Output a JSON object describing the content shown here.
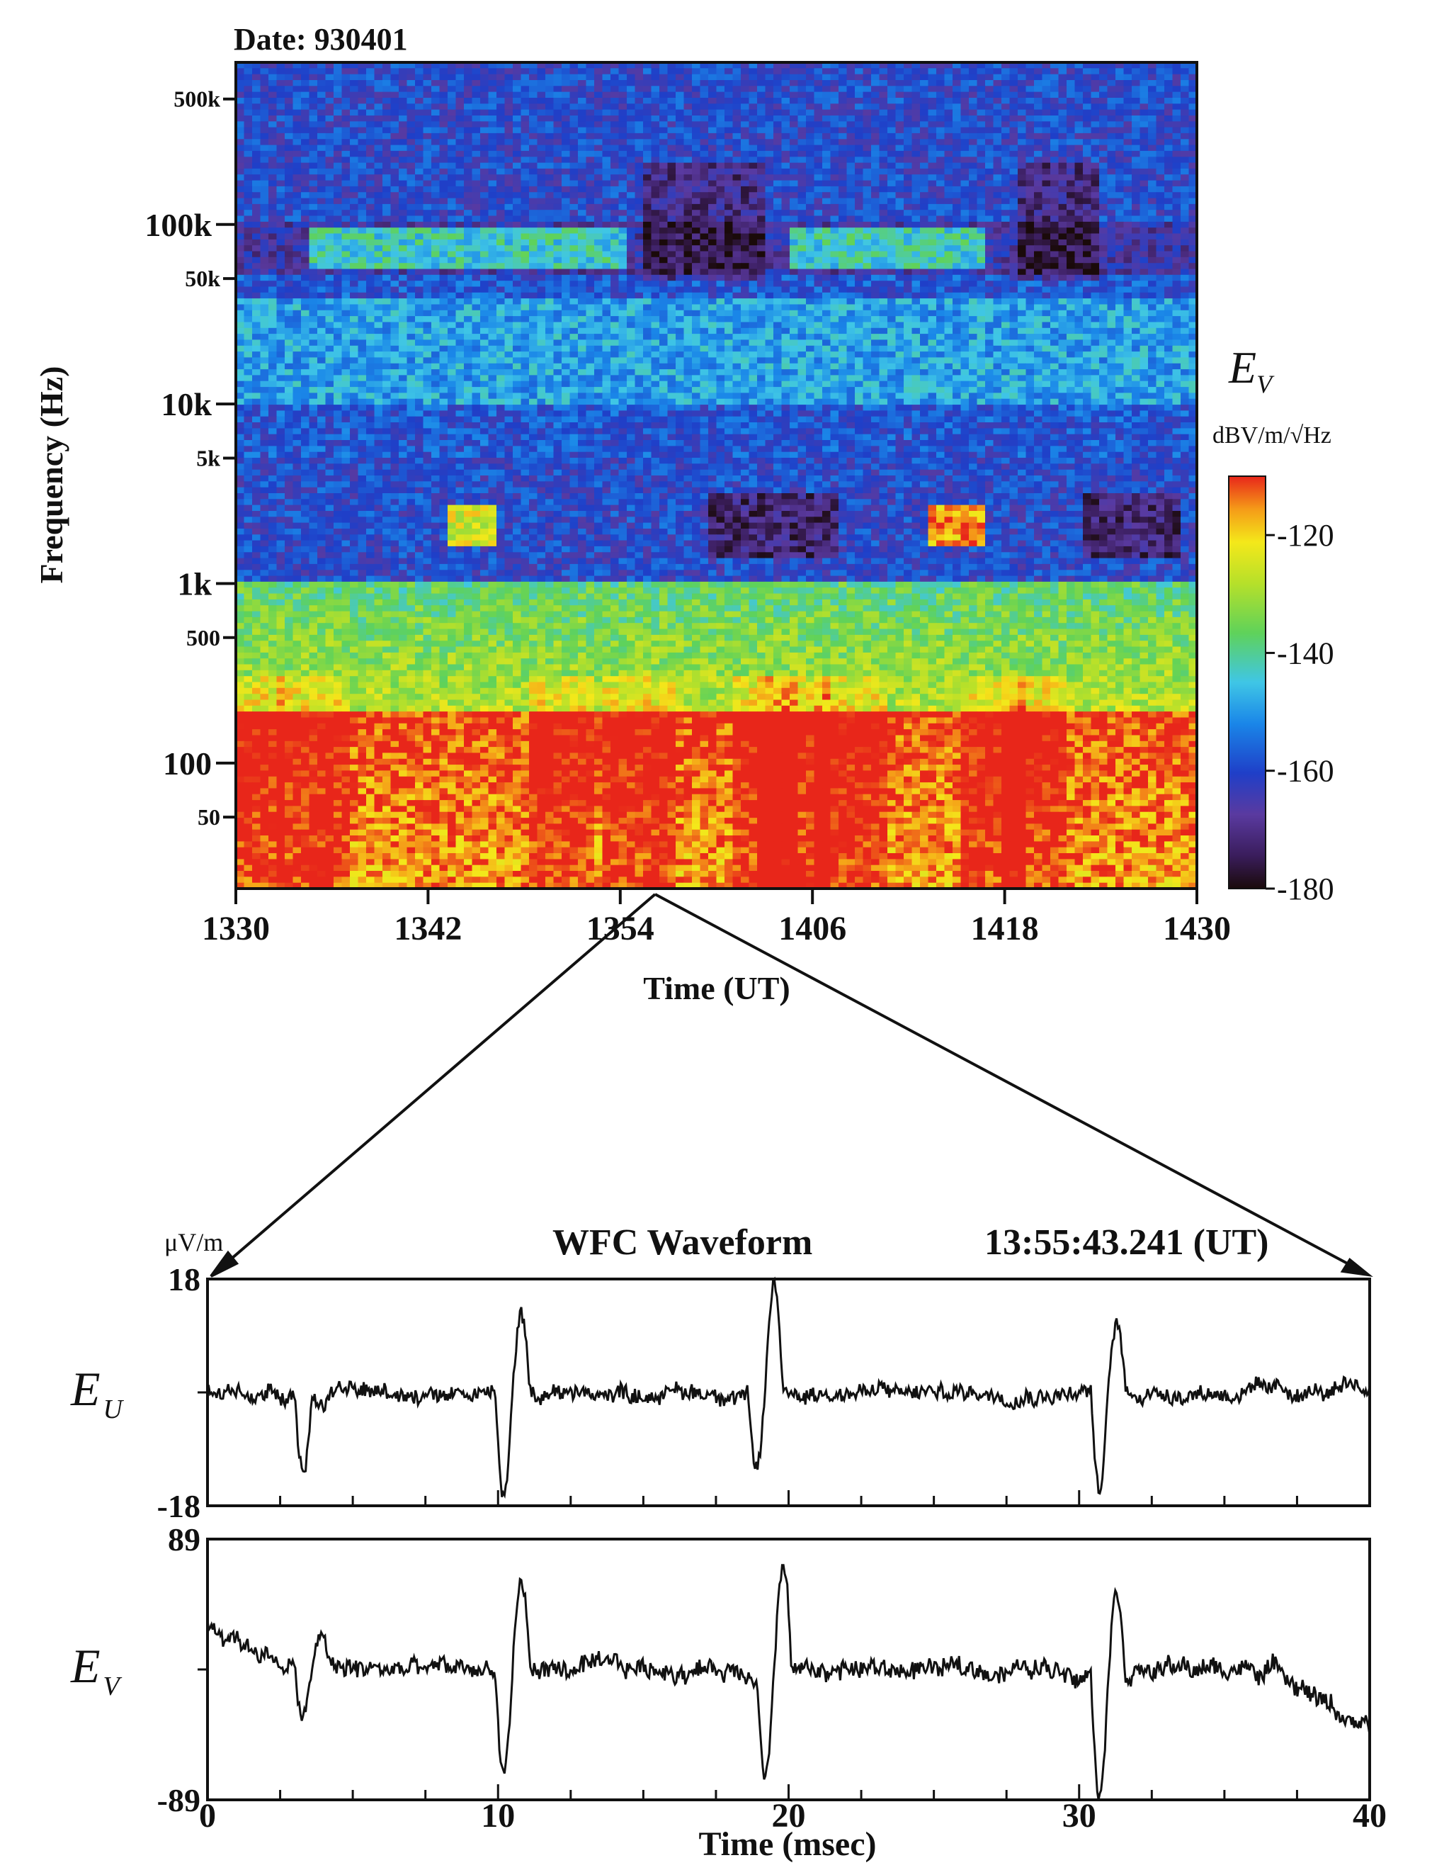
{
  "spectrogram": {
    "date_label": "Date: 930401",
    "ylabel": "Frequency (Hz)",
    "xlabel": "Time (UT)",
    "y_ticks": [
      {
        "label": "500k",
        "value": 500000,
        "major": false
      },
      {
        "label": "100k",
        "value": 100000,
        "major": true
      },
      {
        "label": "50k",
        "value": 50000,
        "major": false
      },
      {
        "label": "10k",
        "value": 10000,
        "major": true
      },
      {
        "label": "5k",
        "value": 5000,
        "major": false
      },
      {
        "label": "1k",
        "value": 1000,
        "major": true
      },
      {
        "label": "500",
        "value": 500,
        "major": false
      },
      {
        "label": "100",
        "value": 100,
        "major": true
      },
      {
        "label": "50",
        "value": 50,
        "major": false
      }
    ],
    "x_ticks": [
      "1330",
      "1342",
      "1354",
      "1406",
      "1418",
      "1430"
    ],
    "colorbar": {
      "title_main": "E",
      "title_sub": "V",
      "unit": "dBV/m/√Hz",
      "ticks": [
        "-120",
        "-140",
        "-160",
        "-180"
      ],
      "range": [
        -180,
        -110
      ]
    }
  },
  "zoom": {
    "source_time": "1355"
  },
  "waveform": {
    "title": "WFC Waveform",
    "timestamp": "13:55:43.241 (UT)",
    "unit": "μV/m",
    "xlabel": "Time (msec)",
    "x_ticks": [
      "0",
      "10",
      "20",
      "30",
      "40"
    ]
  },
  "chart_data": [
    {
      "type": "heatmap",
      "title": "Date: 930401",
      "xlabel": "Time (UT)",
      "ylabel": "Frequency (Hz)",
      "x_range": [
        "1330",
        "1430"
      ],
      "y_range": [
        20,
        800000
      ],
      "y_scale": "log",
      "color_range": [
        -180,
        -110
      ],
      "color_unit": "dBV/m/√Hz",
      "features": [
        {
          "band": "20-200 Hz",
          "level_db": -115
        },
        {
          "band": "200-1k Hz",
          "level_db": -135
        },
        {
          "band": "1k-5k Hz",
          "level_db": -158
        },
        {
          "band": "10k-40k Hz",
          "level_db": -148
        },
        {
          "band": "60k-90k Hz",
          "level_db": -143
        },
        {
          "band": "100k-600k Hz",
          "level_db": -158
        }
      ]
    },
    {
      "type": "line",
      "title": "WFC Waveform",
      "xlabel": "Time (msec)",
      "ylabel": "μV/m",
      "series_label": "E_U",
      "xlim": [
        0,
        40
      ],
      "ylim": [
        -18,
        18
      ],
      "pulses": [
        {
          "t": 3.6,
          "min": -12,
          "max": -2
        },
        {
          "t": 10.5,
          "min": -17,
          "max": 12
        },
        {
          "t": 19.2,
          "min": -13,
          "max": 17
        },
        {
          "t": 31.0,
          "min": -16,
          "max": 11
        }
      ],
      "baseline": 0
    },
    {
      "type": "line",
      "xlabel": "Time (msec)",
      "ylabel": "μV/m",
      "series_label": "E_V",
      "xlim": [
        0,
        40
      ],
      "ylim": [
        -89,
        89
      ],
      "pulses": [
        {
          "t": 3.6,
          "min": -35,
          "max": 25
        },
        {
          "t": 10.5,
          "min": -70,
          "max": 60
        },
        {
          "t": 19.5,
          "min": -70,
          "max": 70
        },
        {
          "t": 31.0,
          "min": -80,
          "max": 55
        }
      ],
      "baseline": 0
    }
  ]
}
